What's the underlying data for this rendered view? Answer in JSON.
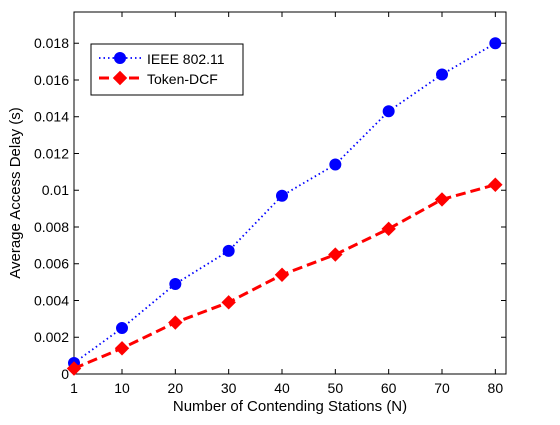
{
  "chart_data": {
    "type": "line",
    "xlabel": "Number of Contending Stations (N)",
    "ylabel": "Average Access Delay (s)",
    "x": [
      1,
      10,
      20,
      30,
      40,
      50,
      60,
      70,
      80
    ],
    "xticks": [
      1,
      10,
      20,
      30,
      40,
      50,
      60,
      70,
      80
    ],
    "yticks": [
      0,
      0.002,
      0.004,
      0.006,
      0.008,
      0.01,
      0.012,
      0.014,
      0.016,
      0.018
    ],
    "xlim": [
      1,
      82
    ],
    "ylim": [
      0,
      0.0197
    ],
    "legend_position": "top-left",
    "grid": false,
    "series": [
      {
        "name": "IEEE 802.11",
        "color": "#0000ff",
        "line_style": "dotted",
        "marker": "circle",
        "values": [
          0.0006,
          0.0025,
          0.0049,
          0.0067,
          0.0097,
          0.0114,
          0.0143,
          0.0163,
          0.018
        ]
      },
      {
        "name": "Token-DCF",
        "color": "#ff0000",
        "line_style": "dashed",
        "marker": "diamond",
        "values": [
          0.0003,
          0.0014,
          0.0028,
          0.0039,
          0.0054,
          0.0065,
          0.0079,
          0.0095,
          0.0103
        ]
      }
    ]
  }
}
